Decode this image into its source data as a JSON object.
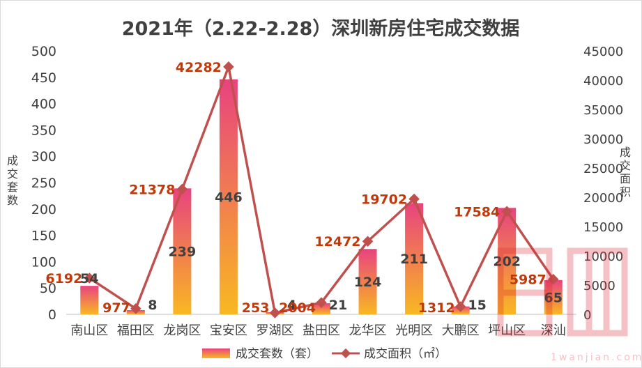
{
  "chart_data": {
    "type": "bar",
    "title": "2021年（2.22-2.28）深圳新房住宅成交数据",
    "categories": [
      "南山区",
      "福田区",
      "龙岗区",
      "宝安区",
      "罗湖区",
      "盐田区",
      "龙华区",
      "光明区",
      "大鹏区",
      "坪山区",
      "深汕"
    ],
    "series": [
      {
        "name": "成交套数（套）",
        "type": "bar",
        "values": [
          54,
          8,
          239,
          446,
          4,
          21,
          124,
          211,
          15,
          202,
          65
        ],
        "axis": "left",
        "color_top": "#E8437F",
        "color_bottom": "#F9B822"
      },
      {
        "name": "成交面积（㎡）",
        "type": "line",
        "values": [
          6192,
          977,
          21378,
          42282,
          253,
          2004,
          12472,
          19702,
          1312,
          17584,
          5987
        ],
        "axis": "right",
        "color": "#C0504D"
      }
    ],
    "ylabel_left": "成交套数",
    "ylabel_right": "成交面积",
    "ylim_left": [
      0,
      500
    ],
    "ylim_right": [
      0,
      45000
    ],
    "yticks_left": [
      "0",
      "50",
      "100",
      "150",
      "200",
      "250",
      "300",
      "350",
      "400",
      "450",
      "500"
    ],
    "yticks_right": [
      "0",
      "5000",
      "10000",
      "15000",
      "20000",
      "25000",
      "30000",
      "35000",
      "40000",
      "45000"
    ],
    "grid": false,
    "legend_position": "bottom",
    "bar_label_color": "#404040",
    "line_label_color": "#C0390B"
  },
  "watermark": {
    "text": "1wanjian.com"
  }
}
